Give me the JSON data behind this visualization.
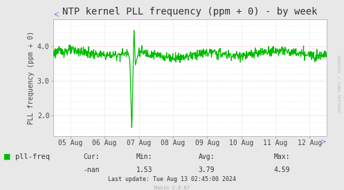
{
  "title": "NTP kernel PLL frequency (ppm + 0) - by week",
  "ylabel": "PLL frequency (ppm + 0)",
  "bg_color": "#e8e8e8",
  "plot_bg_color": "#ffffff",
  "grid_color_h": "#ffaaaa",
  "grid_color_v": "#cccccc",
  "line_color": "#00bb00",
  "x_tick_labels": [
    "05 Aug",
    "06 Aug",
    "07 Aug",
    "08 Aug",
    "09 Aug",
    "10 Aug",
    "11 Aug",
    "12 Aug"
  ],
  "ylim": [
    1.4,
    4.8
  ],
  "yticks": [
    2.0,
    3.0,
    4.0
  ],
  "legend_label": "pll-freq",
  "legend_color": "#00bb00",
  "cur_val": "-nan",
  "min_val": "1.53",
  "avg_val": "3.79",
  "max_val": "4.59",
  "last_update": "Last update: Tue Aug 13 02:45:00 2024",
  "munin_version": "Munin 2.0.67",
  "rrdtool_label": "RRDTOOL / TOBI OETIKER",
  "title_fontsize": 10,
  "axis_label_fontsize": 7,
  "tick_fontsize": 7,
  "legend_fontsize": 7.5,
  "stats_fontsize": 7
}
